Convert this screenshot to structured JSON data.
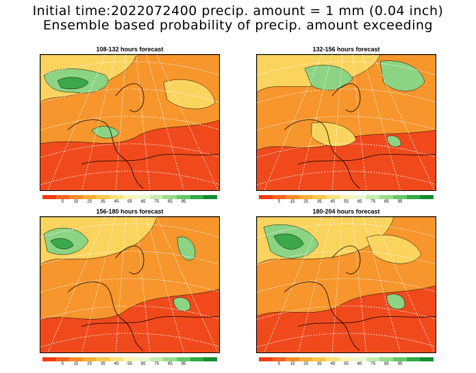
{
  "header": {
    "line1": "Initial time:2022072400 precip. amount = 1 mm (0.04 inch)",
    "line2": "Ensemble based probability of precip. amount exceeding"
  },
  "panels": [
    {
      "title": "108-132 hours forecast"
    },
    {
      "title": "132-156 hours forecast"
    },
    {
      "title": "156-180 hours forecast"
    },
    {
      "title": "180-204 hours forecast"
    }
  ],
  "colorbar": {
    "colors": [
      "#f03c14",
      "#f4641e",
      "#f68c28",
      "#f8ae34",
      "#fac84c",
      "#fce27a",
      "#fef4b4",
      "#eaf8d0",
      "#c4ecb0",
      "#96dc8c",
      "#64c864",
      "#32aa46",
      "#148c32"
    ],
    "labels": [
      "5",
      "15",
      "25",
      "35",
      "45",
      "55",
      "65",
      "75",
      "85",
      "95"
    ]
  },
  "map": {
    "colors": {
      "low": "#f04a1c",
      "mid": "#f6962c",
      "high": "#fbd45e",
      "wet": "#8cd484",
      "wettest": "#3ca84c",
      "coast": "#000000",
      "grid": "#ffffff"
    }
  }
}
